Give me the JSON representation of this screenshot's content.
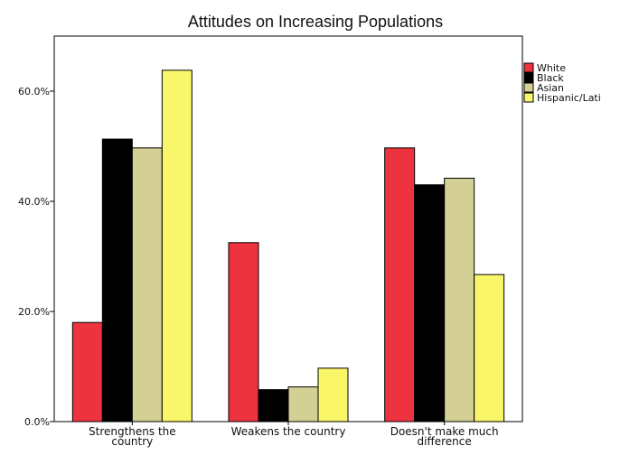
{
  "chart_data": {
    "type": "bar",
    "title": "Attitudes on Increasing Populations",
    "xlabel": "",
    "ylabel": "",
    "categories": [
      [
        "Strengthens the",
        "country"
      ],
      [
        "Weakens the country"
      ],
      [
        "Doesn't make much",
        "difference"
      ]
    ],
    "series": [
      {
        "name": "White",
        "color": "#ee3340",
        "values": [
          18.0,
          32.5,
          49.7
        ]
      },
      {
        "name": "Black",
        "color": "#000000",
        "values": [
          51.3,
          5.8,
          43.0
        ]
      },
      {
        "name": "Asian",
        "color": "#d4cf95",
        "values": [
          49.7,
          6.3,
          44.2
        ]
      },
      {
        "name": "Hispanic/Lati",
        "color": "#faf66a",
        "values": [
          63.8,
          9.7,
          26.7
        ]
      }
    ],
    "ylim": [
      0,
      70
    ],
    "y_ticks": [
      0,
      20,
      40,
      60
    ],
    "y_tick_labels": [
      "0.0%",
      "20.0%",
      "40.0%",
      "60.0%"
    ],
    "grid": false,
    "legend_position": "right"
  }
}
